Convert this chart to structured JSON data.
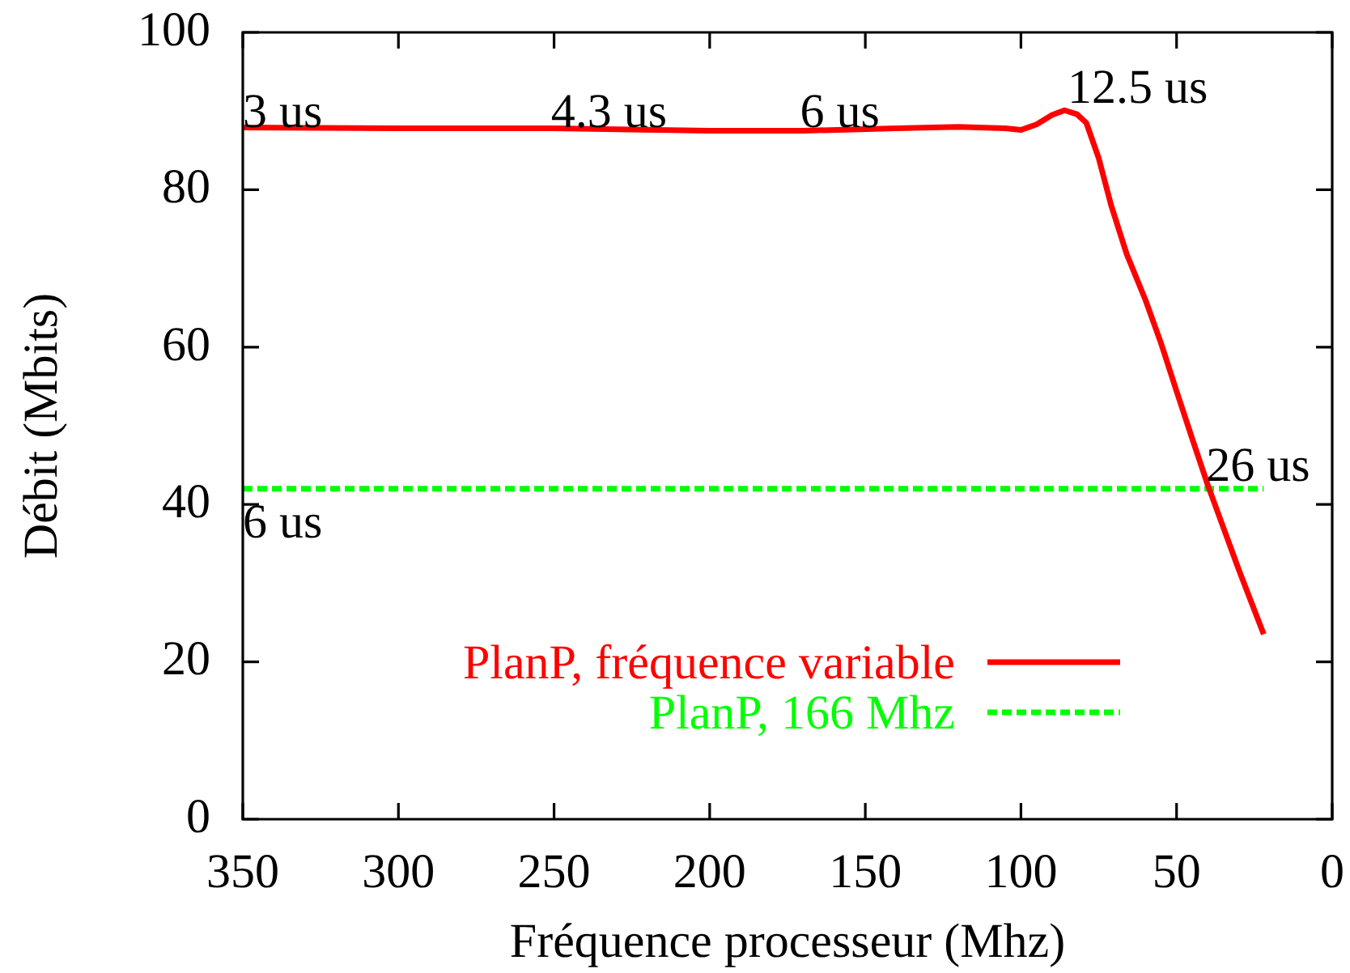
{
  "chart_data": {
    "type": "line",
    "xlabel": "Fréquence processeur (Mhz)",
    "ylabel": "Débit (Mbits)",
    "xlim": [
      350,
      0
    ],
    "xticks": [
      350,
      300,
      250,
      200,
      150,
      100,
      50,
      0
    ],
    "ylim": [
      0,
      100
    ],
    "yticks": [
      0,
      20,
      40,
      60,
      80,
      100
    ],
    "legend": "bottom right",
    "marker": "none",
    "series": [
      {
        "name": "PlanP, fréquence variable",
        "color": "#ff0000",
        "line_style": "solid",
        "x": [
          350,
          300,
          250,
          200,
          170,
          140,
          120,
          105,
          100,
          95,
          90,
          86,
          82,
          79,
          75,
          71,
          66,
          60,
          55,
          50,
          45,
          40,
          35,
          30,
          22
        ],
        "values": [
          87.9,
          87.8,
          87.8,
          87.5,
          87.5,
          87.8,
          88.0,
          87.8,
          87.6,
          88.3,
          89.5,
          90.1,
          89.6,
          88.5,
          84.0,
          78.0,
          71.8,
          66.0,
          60.5,
          54.4,
          48.4,
          42.5,
          37.1,
          31.7,
          23.5
        ]
      },
      {
        "name": "PlanP, 166 Mhz",
        "color": "#00ff00",
        "line_style": "dashed",
        "x": [
          350,
          22
        ],
        "values": [
          42,
          42
        ]
      }
    ],
    "annotations": [
      {
        "text": "3 us",
        "x": 350,
        "y": 88
      },
      {
        "text": "4.3 us",
        "x": 251,
        "y": 88
      },
      {
        "text": "6 us",
        "x": 171,
        "y": 88
      },
      {
        "text": "12.5 us",
        "x": 85,
        "y": 91
      },
      {
        "text": "26 us",
        "x": 40.5,
        "y": 43
      },
      "6 us"
    ]
  }
}
